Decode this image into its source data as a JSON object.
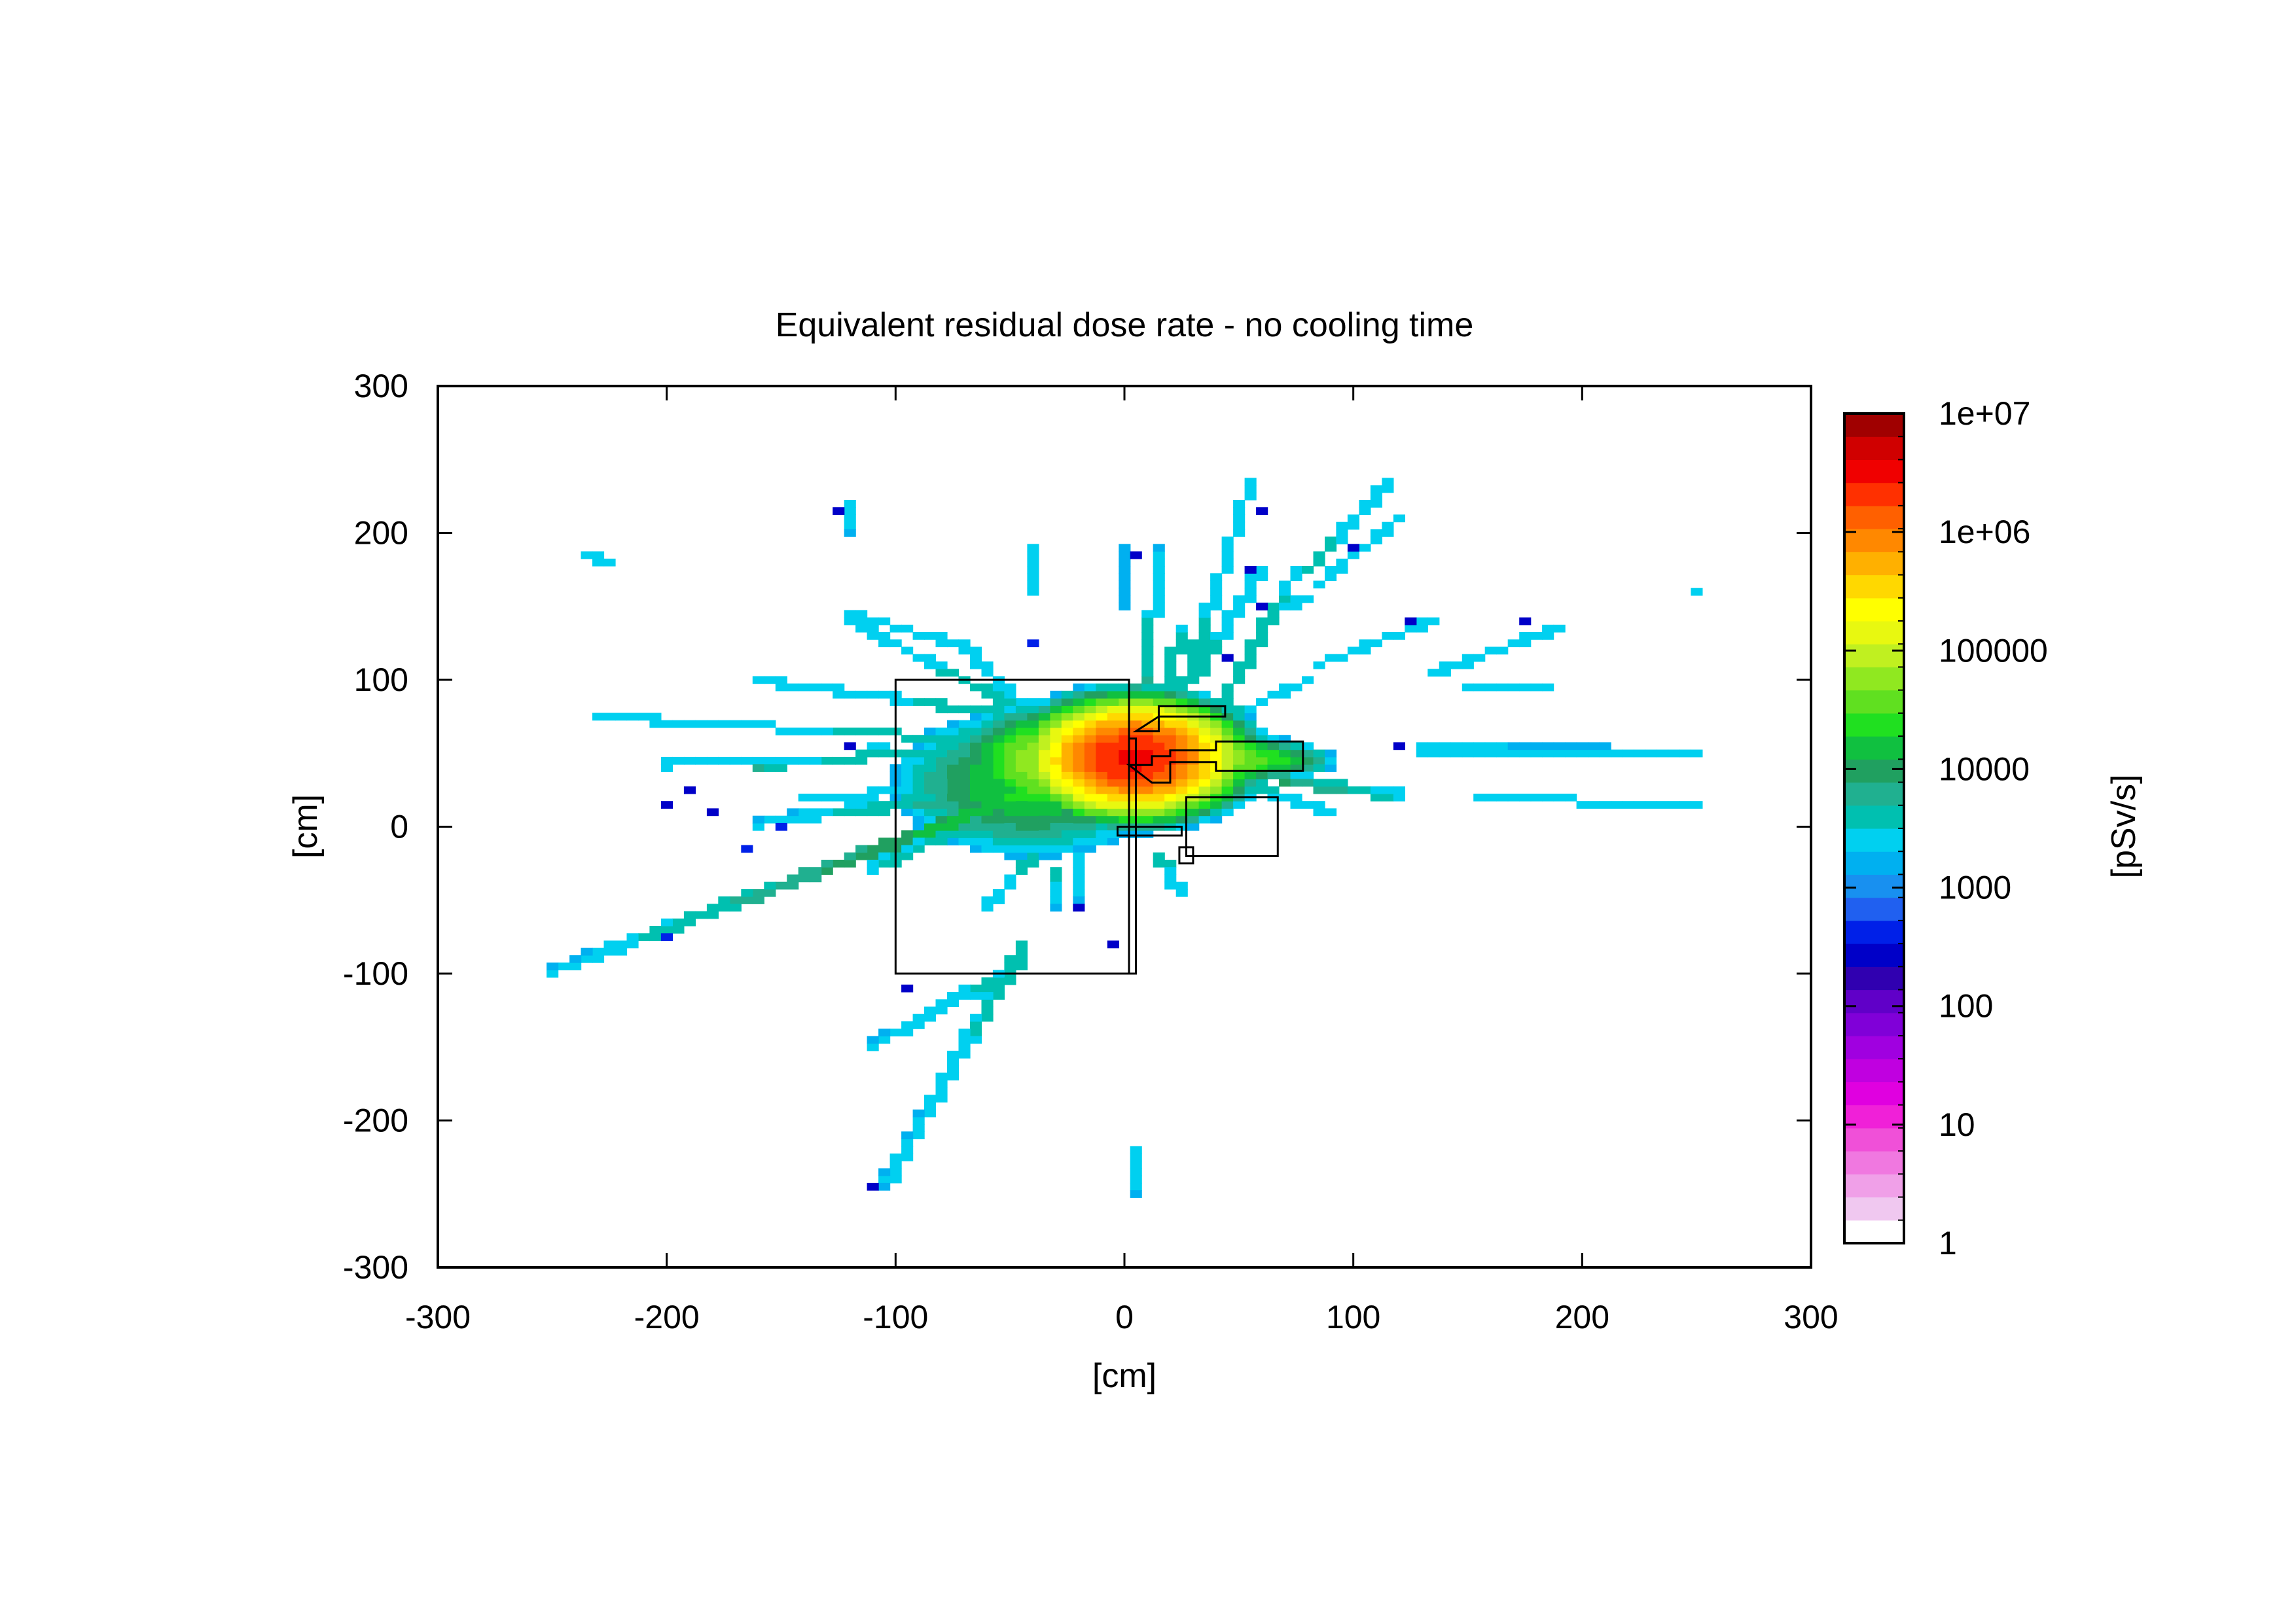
{
  "chart_data": {
    "type": "heatmap",
    "title": "Equivalent residual dose rate - no cooling time",
    "xlabel": "[cm]",
    "ylabel": "[cm]",
    "colorbar_label": "[pSv/s]",
    "xlim": [
      -300,
      300
    ],
    "ylim": [
      -300,
      300
    ],
    "xticks": [
      -300,
      -200,
      -100,
      0,
      100,
      200,
      300
    ],
    "yticks": [
      -300,
      -200,
      -100,
      0,
      100,
      200,
      300
    ],
    "colorbar": {
      "scale": "log",
      "range": [
        1,
        10000000
      ],
      "tick_values": [
        1,
        10,
        100,
        1000,
        10000,
        100000,
        1000000,
        10000000
      ],
      "tick_labels": [
        "1",
        "10",
        "100",
        "1000",
        "10000",
        "100000",
        "1e+06",
        "1e+07"
      ],
      "levels_per_decade": 4,
      "colors": [
        "#ffffff",
        "#f0c8f0",
        "#f0a0e8",
        "#f078e0",
        "#f050d8",
        "#f020d8",
        "#e000e0",
        "#c000e0",
        "#a000e0",
        "#8000d8",
        "#6000c8",
        "#3000b0",
        "#0000c8",
        "#0020e8",
        "#2060f0",
        "#1890f0",
        "#00b0f0",
        "#00d0f0",
        "#00c0b0",
        "#20b090",
        "#20a060",
        "#10c040",
        "#20e020",
        "#60e020",
        "#90e820",
        "#c0f020",
        "#e8f810",
        "#ffff00",
        "#ffd800",
        "#ffb000",
        "#ff8800",
        "#ff6000",
        "#ff3000",
        "#f00000",
        "#d00000",
        "#a00000"
      ]
    },
    "geometry_outlines": [
      {
        "type": "rect",
        "x": [
          -100,
          2
        ],
        "y": [
          -100,
          100
        ]
      },
      {
        "type": "rect",
        "x": [
          2,
          5
        ],
        "y": [
          -100,
          60
        ]
      },
      {
        "type": "rect",
        "x": [
          27,
          67
        ],
        "y": [
          -20,
          20
        ]
      },
      {
        "type": "poly",
        "points": [
          [
            2,
            42
          ],
          [
            12,
            42
          ],
          [
            12,
            48
          ],
          [
            20,
            48
          ],
          [
            20,
            52
          ],
          [
            40,
            52
          ],
          [
            40,
            58
          ],
          [
            78,
            58
          ],
          [
            78,
            38
          ],
          [
            40,
            38
          ],
          [
            40,
            44
          ],
          [
            20,
            44
          ],
          [
            20,
            30
          ],
          [
            12,
            30
          ]
        ]
      },
      {
        "type": "poly",
        "points": [
          [
            -3,
            0
          ],
          [
            25,
            0
          ],
          [
            25,
            -6
          ],
          [
            -3,
            -6
          ]
        ]
      },
      {
        "type": "poly",
        "points": [
          [
            24,
            -14
          ],
          [
            30,
            -14
          ],
          [
            30,
            -25
          ],
          [
            24,
            -25
          ]
        ]
      },
      {
        "type": "poly",
        "points": [
          [
            5,
            65
          ],
          [
            15,
            65
          ],
          [
            15,
            82
          ],
          [
            44,
            82
          ],
          [
            44,
            75
          ],
          [
            15,
            75
          ]
        ]
      }
    ],
    "note_fields": "hotspots: [x, y, peak value pSv/s, radius x, radius y] in cm; streaks: [x0, y0, x1, y1, peak pSv/s, end value pSv/s, half-width cm]; cells: [x, y, value pSv/s]",
    "bin_size_cm": 5,
    "hotspots": [
      [
        2,
        48,
        3000000,
        28,
        24
      ],
      [
        -20,
        45,
        100000,
        38,
        28
      ],
      [
        -40,
        30,
        20000,
        48,
        40
      ],
      [
        20,
        40,
        150000,
        28,
        22
      ],
      [
        40,
        45,
        70000,
        30,
        12
      ],
      [
        65,
        45,
        20000,
        22,
        10
      ]
    ],
    "streaks": [
      [
        -10,
        40,
        -250,
        -100,
        30000,
        2000,
        3
      ],
      [
        -40,
        25,
        -160,
        2,
        10000,
        2000,
        2.5
      ],
      [
        -20,
        30,
        -110,
        55,
        8000,
        2000,
        2
      ],
      [
        -20,
        60,
        -120,
        140,
        6000,
        2000,
        2
      ],
      [
        -30,
        30,
        -110,
        -30,
        8000,
        3000,
        2.5
      ],
      [
        -20,
        70,
        -160,
        100,
        5000,
        2000,
        2
      ],
      [
        -20,
        55,
        -230,
        75,
        5000,
        2000,
        2
      ],
      [
        -30,
        50,
        -200,
        45,
        6000,
        2000,
        2
      ],
      [
        -20,
        30,
        -140,
        20,
        6000,
        2000,
        2
      ],
      [
        -45,
        -95,
        -110,
        -150,
        4000,
        2000,
        2.5
      ],
      [
        -45,
        -85,
        -105,
        -245,
        4000,
        2000,
        2.5
      ],
      [
        0,
        150,
        0,
        190,
        2000,
        2000,
        2
      ],
      [
        10,
        100,
        15,
        185,
        5000,
        2000,
        2.5
      ],
      [
        15,
        75,
        25,
        135,
        5000,
        3000,
        2
      ],
      [
        25,
        90,
        55,
        235,
        4000,
        2000,
        2
      ],
      [
        30,
        100,
        60,
        175,
        4000,
        2000,
        2
      ],
      [
        40,
        75,
        75,
        175,
        4000,
        3000,
        2
      ],
      [
        80,
        175,
        115,
        235,
        4000,
        2000,
        2
      ],
      [
        85,
        165,
        120,
        210,
        3000,
        2000,
        2
      ],
      [
        65,
        145,
        80,
        155,
        3000,
        2000,
        2
      ],
      [
        85,
        110,
        135,
        140,
        3000,
        2000,
        2
      ],
      [
        135,
        105,
        190,
        135,
        3000,
        2000,
        2
      ],
      [
        150,
        95,
        185,
        95,
        3000,
        2000,
        2
      ],
      [
        130,
        52,
        210,
        52,
        3000,
        2000,
        2.5
      ],
      [
        210,
        49,
        250,
        49,
        3000,
        2000,
        2.5
      ],
      [
        155,
        22,
        195,
        22,
        3000,
        2000,
        2
      ],
      [
        200,
        17,
        250,
        13,
        3000,
        2000,
        2
      ],
      [
        70,
        30,
        120,
        20,
        8000,
        3000,
        2.5
      ],
      [
        50,
        30,
        90,
        10,
        4000,
        2000,
        2
      ],
      [
        40,
        70,
        80,
        100,
        4000,
        2000,
        2
      ],
      [
        -45,
        80,
        -70,
        125,
        3000,
        2000,
        2
      ],
      [
        -75,
        125,
        -120,
        145,
        3000,
        2000,
        2
      ],
      [
        -120,
        220,
        -120,
        200,
        3000,
        2000,
        2
      ],
      [
        -40,
        160,
        -40,
        190,
        3000,
        2000,
        2
      ],
      [
        -235,
        185,
        -225,
        180,
        3000,
        2000,
        2
      ],
      [
        -225,
        77,
        -200,
        72,
        3000,
        2000,
        2
      ],
      [
        -200,
        42,
        -190,
        47,
        3000,
        2000,
        2
      ],
      [
        -160,
        40,
        -150,
        40,
        5000,
        4000,
        2
      ],
      [
        -40,
        -20,
        -60,
        -55,
        4000,
        2000,
        2
      ],
      [
        -30,
        -30,
        -30,
        -55,
        4000,
        2000,
        2
      ],
      [
        5,
        -220,
        5,
        -250,
        3000,
        2000,
        2
      ],
      [
        -20,
        -20,
        -20,
        -50,
        3000,
        2000,
        2
      ],
      [
        15,
        -20,
        25,
        -45,
        4000,
        2000,
        2
      ]
    ],
    "cells": [
      [
        -235,
        187,
        300
      ],
      [
        -200,
        42,
        400
      ],
      [
        -105,
        67,
        400
      ],
      [
        -40,
        127,
        400
      ],
      [
        -20,
        87,
        400
      ],
      [
        -30,
        52,
        300
      ],
      [
        -150,
        -2,
        500
      ],
      [
        -165,
        -17,
        400
      ],
      [
        -240,
        -97,
        300
      ],
      [
        -250,
        -102,
        300
      ],
      [
        -200,
        -77,
        400
      ],
      [
        -50,
        -92,
        300
      ],
      [
        -40,
        30,
        300
      ],
      [
        -45,
        7,
        300
      ],
      [
        -55,
        12,
        500
      ],
      [
        -80,
        40,
        300
      ],
      [
        -10,
        27,
        400
      ],
      [
        -30,
        -47,
        300
      ],
      [
        -20,
        -57,
        300
      ],
      [
        -5,
        -80,
        300
      ],
      [
        -95,
        -110,
        300
      ],
      [
        -110,
        -150,
        300
      ],
      [
        -60,
        -110,
        300
      ],
      [
        -100,
        -240,
        300
      ],
      [
        -110,
        -245,
        300
      ],
      [
        -30,
        -10,
        400
      ],
      [
        5,
        -220,
        300
      ],
      [
        15,
        95,
        300
      ],
      [
        40,
        155,
        300
      ],
      [
        55,
        175,
        300
      ],
      [
        60,
        150,
        300
      ],
      [
        45,
        115,
        300
      ],
      [
        35,
        120,
        20
      ],
      [
        35,
        90,
        300
      ],
      [
        55,
        60,
        20
      ],
      [
        75,
        95,
        300
      ],
      [
        30,
        80,
        300
      ],
      [
        25,
        60,
        500
      ],
      [
        125,
        140,
        300
      ],
      [
        120,
        55,
        300
      ],
      [
        175,
        142,
        300
      ],
      [
        178,
        20,
        300
      ],
      [
        185,
        95,
        300
      ],
      [
        250,
        162,
        3000
      ],
      [
        100,
        190,
        300
      ],
      [
        60,
        215,
        300
      ],
      [
        -125,
        215,
        300
      ],
      [
        -200,
        17,
        300
      ],
      [
        -120,
        57,
        300
      ],
      [
        -190,
        25,
        300
      ],
      [
        -180,
        10,
        300
      ],
      [
        5,
        187,
        300
      ]
    ]
  }
}
